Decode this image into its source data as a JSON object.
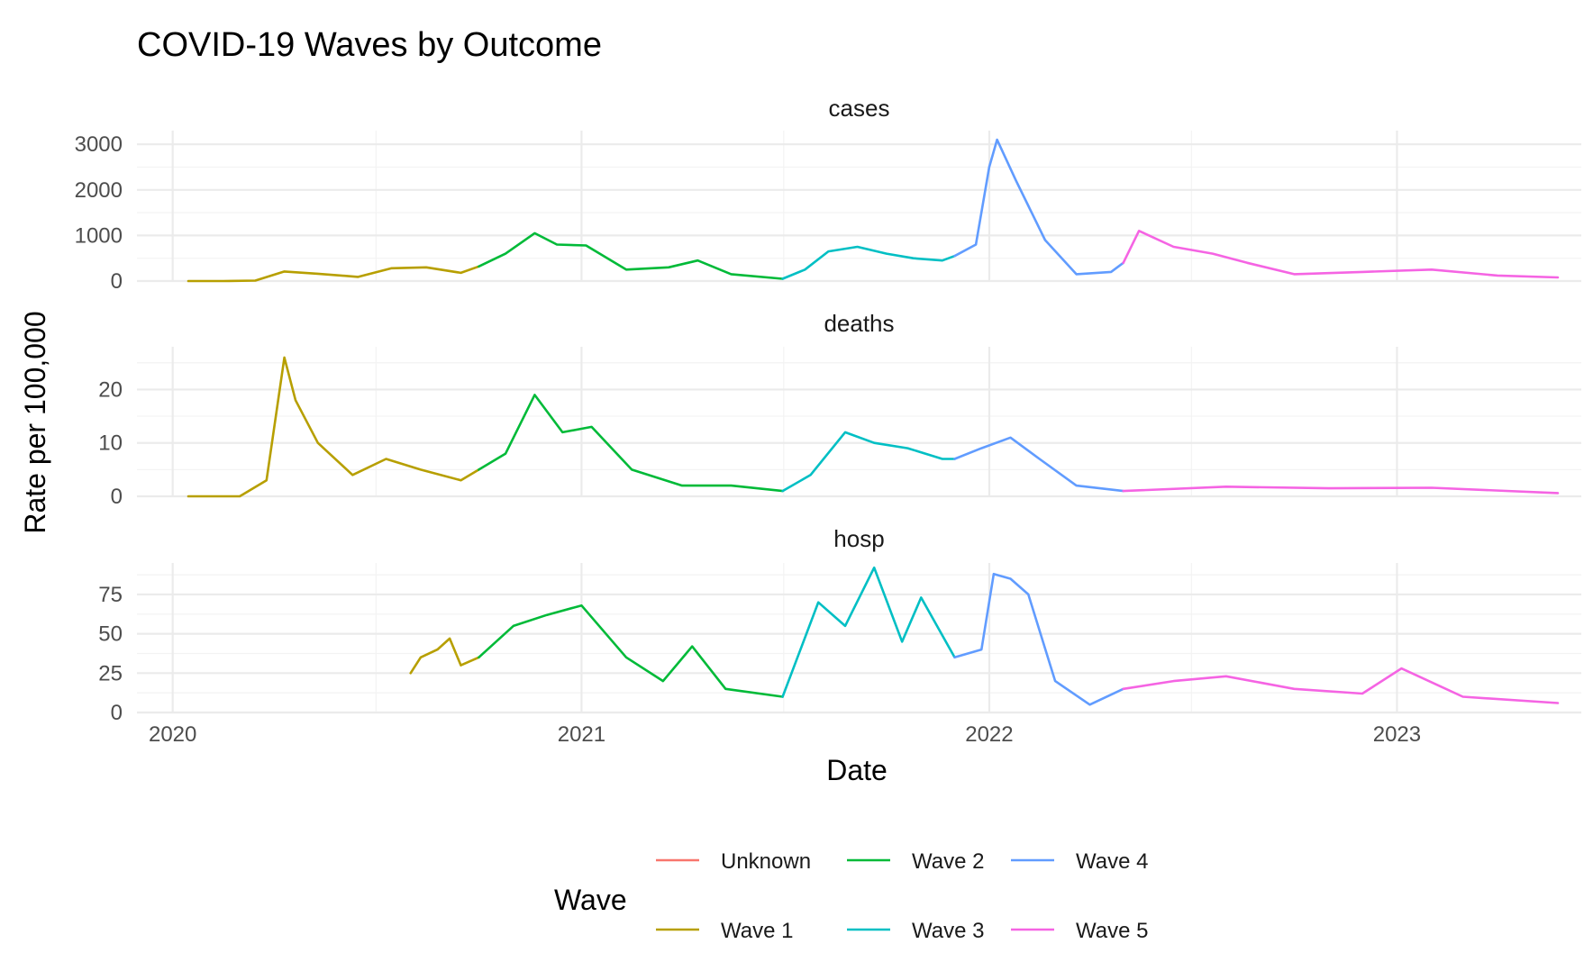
{
  "chart_data": {
    "type": "line",
    "title": "COVID-19 Waves by Outcome",
    "xlabel": "Date",
    "ylabel": "Rate per 100,000",
    "x_ticks": [
      "2020",
      "2021",
      "2022",
      "2023"
    ],
    "xlim": [
      "2019-11-30",
      "2023-06-15"
    ],
    "grid": true,
    "legend": {
      "title": "Wave",
      "position": "bottom",
      "entries": [
        {
          "name": "Unknown",
          "color": "#f8766d"
        },
        {
          "name": "Wave 1",
          "color": "#b79f00"
        },
        {
          "name": "Wave 2",
          "color": "#00ba38"
        },
        {
          "name": "Wave 3",
          "color": "#00bfc4"
        },
        {
          "name": "Wave 4",
          "color": "#619cff"
        },
        {
          "name": "Wave 5",
          "color": "#f564e3"
        }
      ]
    },
    "panels": [
      {
        "name": "cases",
        "ylim": [
          0,
          3300
        ],
        "y_ticks": [
          0,
          1000,
          2000,
          3000
        ],
        "y_tick_labels": [
          "0",
          "1000",
          "2000",
          "3000"
        ],
        "series": [
          {
            "wave": "Wave 1",
            "x": [
              "2020-01-15",
              "2020-02-15",
              "2020-03-15",
              "2020-04-10",
              "2020-05-10",
              "2020-06-15",
              "2020-07-15",
              "2020-08-15",
              "2020-09-15",
              "2020-10-01"
            ],
            "y": [
              0,
              0,
              10,
              210,
              160,
              90,
              280,
              300,
              180,
              320
            ]
          },
          {
            "wave": "Wave 2",
            "x": [
              "2020-10-01",
              "2020-10-25",
              "2020-11-20",
              "2020-12-10",
              "2021-01-05",
              "2021-02-10",
              "2021-03-20",
              "2021-04-15",
              "2021-05-15",
              "2021-06-30"
            ],
            "y": [
              320,
              600,
              1050,
              800,
              780,
              250,
              300,
              450,
              150,
              50
            ]
          },
          {
            "wave": "Wave 3",
            "x": [
              "2021-06-30",
              "2021-07-20",
              "2021-08-10",
              "2021-09-05",
              "2021-10-01",
              "2021-10-25",
              "2021-11-20",
              "2021-12-01"
            ],
            "y": [
              50,
              250,
              650,
              750,
              600,
              500,
              450,
              550
            ]
          },
          {
            "wave": "Wave 4",
            "x": [
              "2021-12-01",
              "2021-12-20",
              "2022-01-01",
              "2022-01-08",
              "2022-01-25",
              "2022-02-20",
              "2022-03-20",
              "2022-04-20",
              "2022-05-01"
            ],
            "y": [
              550,
              800,
              2500,
              3100,
              2200,
              900,
              150,
              200,
              400
            ]
          },
          {
            "wave": "Wave 5",
            "x": [
              "2022-05-01",
              "2022-05-15",
              "2022-06-15",
              "2022-07-20",
              "2022-08-20",
              "2022-10-01",
              "2022-12-01",
              "2023-02-01",
              "2023-04-01",
              "2023-05-25"
            ],
            "y": [
              400,
              1100,
              750,
              600,
              400,
              150,
              200,
              250,
              120,
              80
            ]
          }
        ]
      },
      {
        "name": "deaths",
        "ylim": [
          0,
          28
        ],
        "y_ticks": [
          0,
          10,
          20
        ],
        "y_tick_labels": [
          "0",
          "10",
          "20"
        ],
        "series": [
          {
            "wave": "Wave 1",
            "x": [
              "2020-01-15",
              "2020-03-01",
              "2020-03-25",
              "2020-04-10",
              "2020-04-20",
              "2020-05-10",
              "2020-06-10",
              "2020-07-10",
              "2020-08-10",
              "2020-09-15",
              "2020-10-01"
            ],
            "y": [
              0,
              0,
              3,
              26,
              18,
              10,
              4,
              7,
              5,
              3,
              5
            ]
          },
          {
            "wave": "Wave 2",
            "x": [
              "2020-10-01",
              "2020-10-25",
              "2020-11-20",
              "2020-12-15",
              "2021-01-10",
              "2021-02-15",
              "2021-04-01",
              "2021-05-15",
              "2021-06-30"
            ],
            "y": [
              5,
              8,
              19,
              12,
              13,
              5,
              2,
              2,
              1
            ]
          },
          {
            "wave": "Wave 3",
            "x": [
              "2021-06-30",
              "2021-07-25",
              "2021-08-25",
              "2021-09-20",
              "2021-10-20",
              "2021-11-20",
              "2021-12-01"
            ],
            "y": [
              1,
              4,
              12,
              10,
              9,
              7,
              7
            ]
          },
          {
            "wave": "Wave 4",
            "x": [
              "2021-12-01",
              "2021-12-25",
              "2022-01-20",
              "2022-02-15",
              "2022-03-20",
              "2022-05-01"
            ],
            "y": [
              7,
              9,
              11,
              7,
              2,
              1
            ]
          },
          {
            "wave": "Wave 5",
            "x": [
              "2022-05-01",
              "2022-08-01",
              "2022-11-01",
              "2023-02-01",
              "2023-05-25"
            ],
            "y": [
              1,
              1.8,
              1.5,
              1.6,
              0.6
            ]
          }
        ]
      },
      {
        "name": "hosp",
        "ylim": [
          0,
          95
        ],
        "y_ticks": [
          0,
          25,
          50,
          75
        ],
        "y_tick_labels": [
          "0",
          "25",
          "50",
          "75"
        ],
        "series": [
          {
            "wave": "Wave 1",
            "x": [
              "2020-08-01",
              "2020-08-10",
              "2020-08-25",
              "2020-09-05",
              "2020-09-15",
              "2020-10-01"
            ],
            "y": [
              25,
              35,
              40,
              47,
              30,
              35
            ]
          },
          {
            "wave": "Wave 2",
            "x": [
              "2020-10-01",
              "2020-11-01",
              "2020-12-01",
              "2021-01-01",
              "2021-02-10",
              "2021-03-15",
              "2021-04-10",
              "2021-05-10",
              "2021-06-30"
            ],
            "y": [
              35,
              55,
              62,
              68,
              35,
              20,
              42,
              15,
              10
            ]
          },
          {
            "wave": "Wave 3",
            "x": [
              "2021-06-30",
              "2021-08-01",
              "2021-08-25",
              "2021-09-20",
              "2021-10-15",
              "2021-11-01",
              "2021-12-01"
            ],
            "y": [
              10,
              70,
              55,
              92,
              45,
              73,
              35
            ]
          },
          {
            "wave": "Wave 4",
            "x": [
              "2021-12-01",
              "2021-12-25",
              "2022-01-05",
              "2022-01-20",
              "2022-02-05",
              "2022-03-01",
              "2022-04-01",
              "2022-05-01"
            ],
            "y": [
              35,
              40,
              88,
              85,
              75,
              20,
              5,
              15
            ]
          },
          {
            "wave": "Wave 5",
            "x": [
              "2022-05-01",
              "2022-06-15",
              "2022-08-01",
              "2022-10-01",
              "2022-12-01",
              "2023-01-05",
              "2023-03-01",
              "2023-05-25"
            ],
            "y": [
              15,
              20,
              23,
              15,
              12,
              28,
              10,
              6
            ]
          }
        ]
      }
    ]
  }
}
